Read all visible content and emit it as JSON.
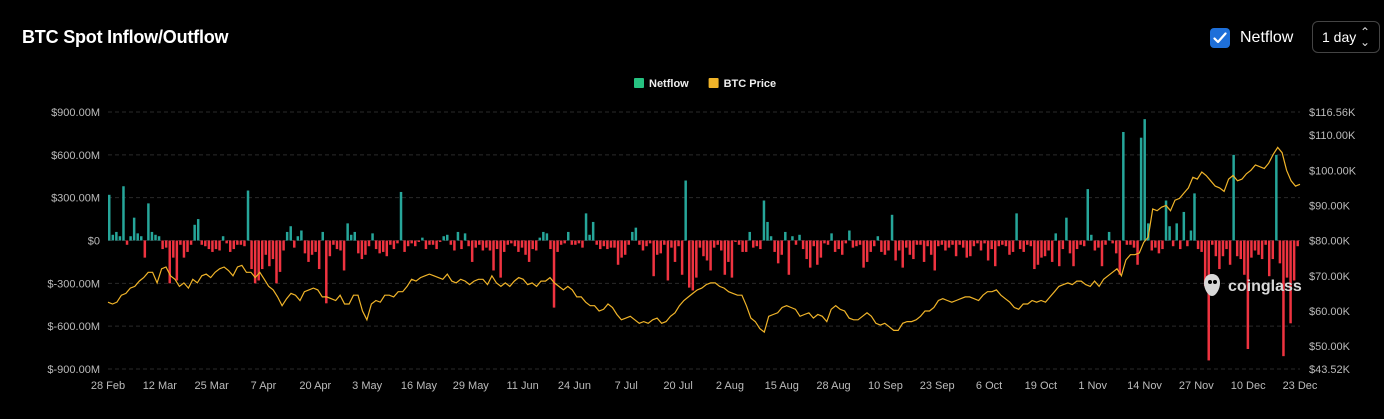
{
  "header": {
    "title": "BTC Spot Inflow/Outflow",
    "checkbox_label": "Netflow",
    "checkbox_checked": true,
    "interval_value": "1 day"
  },
  "watermark": "coinglass",
  "chart_data": {
    "type": "bar+line",
    "legend": {
      "placement": "top-center",
      "items": [
        {
          "name": "Netflow",
          "color": "#26c281"
        },
        {
          "name": "BTC Price",
          "color": "#f0b429"
        }
      ]
    },
    "x_ticks": [
      "28 Feb",
      "12 Mar",
      "25 Mar",
      "7 Apr",
      "20 Apr",
      "3 May",
      "16 May",
      "29 May",
      "11 Jun",
      "24 Jun",
      "7 Jul",
      "20 Jul",
      "2 Aug",
      "15 Aug",
      "28 Aug",
      "10 Sep",
      "23 Sep",
      "6 Oct",
      "19 Oct",
      "1 Nov",
      "14 Nov",
      "27 Nov",
      "10 Dec",
      "23 Dec"
    ],
    "y_left": {
      "ticks": [
        "$900.00M",
        "$600.00M",
        "$300.00M",
        "$0",
        "$-300.00M",
        "$-600.00M",
        "$-900.00M"
      ],
      "range": [
        -900,
        900
      ],
      "unit": "M USD"
    },
    "y_right": {
      "ticks": [
        "$116.56K",
        "$110.00K",
        "$100.00K",
        "$90.00K",
        "$80.00K",
        "$70.00K",
        "$60.00K",
        "$50.00K",
        "$43.52K"
      ],
      "range": [
        43.52,
        116.56
      ],
      "unit": "K USD"
    },
    "grid": true,
    "colors": {
      "positive": "#26a69a",
      "negative": "#ef3340",
      "price": "#f0b429"
    },
    "netflow_M": [
      320,
      40,
      60,
      30,
      380,
      -30,
      30,
      160,
      50,
      30,
      -120,
      260,
      60,
      40,
      30,
      -60,
      -50,
      -300,
      -120,
      -280,
      -30,
      -120,
      -80,
      -30,
      110,
      150,
      -30,
      -40,
      -60,
      -80,
      -60,
      -70,
      30,
      -20,
      -80,
      -60,
      -30,
      -30,
      -40,
      350,
      -200,
      -300,
      -280,
      -200,
      -100,
      -180,
      -130,
      -300,
      -220,
      -70,
      60,
      100,
      -50,
      30,
      70,
      -90,
      -150,
      -100,
      -80,
      -200,
      60,
      -440,
      -110,
      -30,
      -60,
      -70,
      -210,
      120,
      40,
      60,
      -90,
      -130,
      -100,
      -40,
      50,
      -60,
      -90,
      -80,
      -110,
      -30,
      -60,
      -20,
      340,
      -80,
      -40,
      -20,
      -40,
      -10,
      20,
      -60,
      -30,
      -30,
      -60,
      -10,
      30,
      40,
      -30,
      -70,
      60,
      -60,
      50,
      -40,
      -150,
      -50,
      -30,
      -70,
      -50,
      -70,
      -210,
      -60,
      -260,
      -80,
      -30,
      -20,
      -40,
      -80,
      -50,
      -100,
      -150,
      -60,
      -70,
      20,
      60,
      50,
      -60,
      -470,
      -80,
      -30,
      -20,
      60,
      -30,
      -30,
      -20,
      -50,
      190,
      40,
      130,
      -30,
      -60,
      -40,
      -60,
      -50,
      -50,
      -170,
      -120,
      -100,
      -30,
      60,
      90,
      -30,
      -70,
      -40,
      -20,
      -250,
      -100,
      -90,
      -30,
      -280,
      -50,
      -150,
      -40,
      -240,
      420,
      -330,
      -350,
      -260,
      -50,
      -110,
      -140,
      -210,
      -50,
      -30,
      -70,
      -240,
      -150,
      -260,
      -10,
      -30,
      -80,
      -80,
      60,
      -50,
      -40,
      -60,
      280,
      130,
      30,
      -80,
      -160,
      -100,
      60,
      -240,
      30,
      -30,
      40,
      -60,
      -130,
      -190,
      -40,
      -170,
      -120,
      -20,
      -30,
      50,
      -80,
      -60,
      -100,
      -20,
      70,
      -50,
      -40,
      -30,
      -190,
      -150,
      -80,
      -40,
      30,
      -80,
      -100,
      -70,
      180,
      -140,
      -70,
      -190,
      -50,
      -100,
      -130,
      -30,
      -30,
      -150,
      -40,
      -100,
      -210,
      -40,
      -30,
      -70,
      -50,
      -30,
      -110,
      -30,
      -50,
      -120,
      -110,
      -40,
      -20,
      -70,
      -20,
      -140,
      -60,
      -180,
      -40,
      -30,
      -40,
      -100,
      -80,
      190,
      -60,
      -80,
      -30,
      -40,
      -200,
      -170,
      -120,
      -110,
      -70,
      -150,
      50,
      -180,
      -60,
      160,
      -90,
      -180,
      -60,
      -30,
      -40,
      360,
      40,
      -70,
      -50,
      -180,
      -30,
      60,
      -20,
      -90,
      -240,
      760,
      -30,
      -30,
      -50,
      -170,
      720,
      850,
      120,
      -70,
      -50,
      -90,
      -60,
      280,
      100,
      -40,
      120,
      -60,
      200,
      -40,
      70,
      330,
      -60,
      -80,
      -320,
      -840,
      -30,
      -110,
      -200,
      -110,
      -60,
      -170,
      600,
      -110,
      -130,
      -240,
      -760,
      -120,
      -70,
      -100,
      -130,
      -30,
      -250,
      -130,
      600,
      -160,
      -810,
      -260,
      -580,
      -280,
      -40
    ],
    "price_K": [
      62.5,
      62.0,
      62.5,
      64.5,
      65.0,
      66.5,
      67.0,
      68.5,
      69.5,
      71.0,
      71.0,
      68.0,
      72.0,
      72.5,
      70.0,
      69.0,
      67.0,
      68.0,
      66.5,
      69.0,
      68.0,
      70.0,
      70.5,
      69.5,
      71.0,
      72.0,
      72.5,
      71.5,
      70.0,
      72.5,
      73.0,
      71.0,
      71.0,
      69.5,
      71.0,
      69.0,
      67.0,
      66.0,
      64.0,
      61.5,
      63.5,
      65.0,
      64.5,
      63.0,
      65.5,
      66.0,
      66.5,
      66.0,
      64.0,
      64.0,
      63.5,
      63.0,
      64.5,
      62.0,
      62.0,
      64.5,
      64.5,
      60.0,
      57.5,
      62.0,
      63.0,
      62.5,
      64.5,
      64.5,
      64.0,
      65.5,
      65.5,
      67.0,
      69.0,
      68.5,
      69.5,
      70.0,
      70.5,
      70.0,
      69.5,
      69.0,
      70.5,
      68.5,
      68.0,
      69.0,
      68.5,
      67.5,
      68.5,
      69.0,
      69.0,
      67.5,
      70.0,
      68.0,
      67.0,
      68.0,
      67.0,
      68.5,
      69.5,
      69.0,
      67.5,
      68.0,
      67.0,
      68.5,
      68.5,
      69.5,
      68.0,
      67.0,
      66.0,
      67.0,
      66.0,
      64.0,
      64.0,
      62.5,
      61.5,
      61.5,
      60.0,
      60.5,
      62.0,
      61.0,
      59.0,
      57.5,
      58.0,
      58.5,
      57.5,
      56.5,
      57.0,
      56.5,
      57.5,
      58.0,
      56.5,
      57.0,
      58.5,
      59.5,
      61.5,
      63.0,
      64.0,
      65.0,
      66.0,
      66.5,
      67.5,
      68.0,
      68.0,
      67.0,
      66.5,
      65.5,
      65.0,
      64.5,
      64.5,
      61.5,
      58.0,
      57.0,
      55.0,
      54.0,
      58.5,
      59.0,
      59.5,
      61.0,
      61.5,
      61.0,
      60.5,
      58.5,
      59.0,
      59.5,
      58.0,
      59.0,
      58.5,
      57.0,
      60.5,
      61.5,
      60.5,
      60.0,
      58.0,
      57.5,
      57.5,
      58.5,
      59.5,
      58.5,
      56.5,
      56.0,
      56.5,
      55.5,
      54.5,
      54.5,
      56.5,
      57.0,
      57.0,
      57.5,
      58.5,
      60.0,
      60.0,
      61.0,
      63.0,
      63.5,
      63.0,
      62.5,
      63.0,
      63.5,
      64.0,
      64.0,
      63.5,
      63.0,
      64.5,
      65.5,
      65.5,
      66.0,
      64.5,
      63.5,
      62.5,
      61.0,
      60.5,
      62.0,
      62.0,
      63.0,
      62.5,
      63.0,
      62.5,
      64.0,
      65.5,
      67.0,
      67.5,
      68.0,
      67.5,
      68.5,
      68.5,
      67.5,
      67.0,
      68.5,
      67.0,
      69.0,
      70.0,
      71.0,
      72.0,
      70.0,
      74.5,
      76.0,
      76.0,
      76.5,
      79.5,
      81.0,
      89.0,
      88.5,
      89.5,
      90.0,
      88.5,
      91.5,
      92.0,
      93.5,
      95.0,
      98.0,
      97.5,
      99.5,
      98.5,
      97.0,
      95.5,
      95.0,
      94.0,
      97.5,
      98.5,
      97.0,
      97.5,
      99.0,
      100.0,
      101.5,
      101.0,
      100.5,
      102.0,
      104.5,
      106.5,
      105.0,
      100.0,
      97.0,
      95.5,
      96.0
    ]
  }
}
